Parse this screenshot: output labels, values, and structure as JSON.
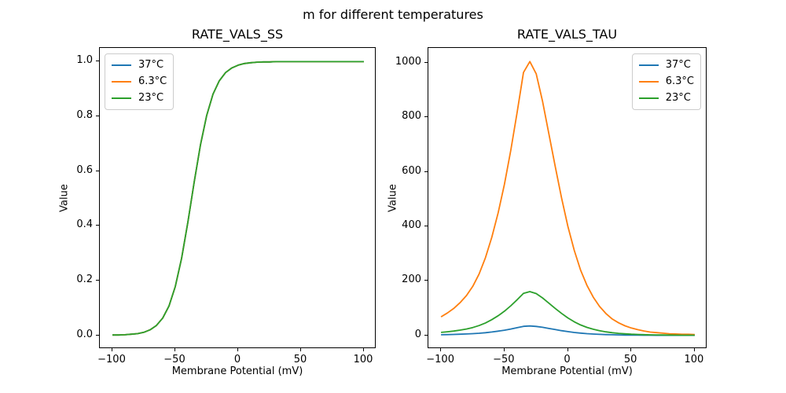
{
  "figure": {
    "title": "m for different temperatures",
    "background": "#ffffff"
  },
  "palette": {
    "blue": "#1f77b4",
    "orange": "#ff7f0e",
    "green": "#2ca02c",
    "axis": "#000000",
    "legend_border": "#cccccc"
  },
  "chart_data": [
    {
      "type": "line",
      "title": "RATE_VALS_SS",
      "xlabel": "Membrane Potential (mV)",
      "ylabel": "Value",
      "xlim": [
        -110,
        110
      ],
      "ylim": [
        -0.05,
        1.05
      ],
      "xticks": [
        -100,
        -50,
        0,
        50,
        100
      ],
      "xtick_labels": [
        "−100",
        "−50",
        "0",
        "50",
        "100"
      ],
      "yticks": [
        0,
        0.2,
        0.4,
        0.6,
        0.8,
        1.0
      ],
      "ytick_labels": [
        "0.0",
        "0.2",
        "0.4",
        "0.6",
        "0.8",
        "1.0"
      ],
      "grid": false,
      "legend_position": "upper-left",
      "x": [
        -100,
        -95,
        -90,
        -85,
        -80,
        -75,
        -70,
        -65,
        -60,
        -55,
        -50,
        -45,
        -40,
        -35,
        -30,
        -25,
        -20,
        -15,
        -10,
        -5,
        0,
        5,
        10,
        15,
        20,
        25,
        30,
        35,
        40,
        45,
        50,
        55,
        60,
        65,
        70,
        75,
        80,
        85,
        90,
        95,
        100
      ],
      "series": [
        {
          "name": "37°C",
          "color": "#1f77b4",
          "values": [
            0.001,
            0.001,
            0.002,
            0.004,
            0.006,
            0.011,
            0.02,
            0.036,
            0.063,
            0.107,
            0.178,
            0.281,
            0.413,
            0.559,
            0.695,
            0.804,
            0.881,
            0.93,
            0.96,
            0.977,
            0.987,
            0.993,
            0.996,
            0.998,
            0.999,
            0.999,
            1,
            1,
            1,
            1,
            1,
            1,
            1,
            1,
            1,
            1,
            1,
            1,
            1,
            1,
            1
          ]
        },
        {
          "name": "6.3°C",
          "color": "#ff7f0e",
          "values": [
            0.001,
            0.001,
            0.002,
            0.004,
            0.006,
            0.011,
            0.02,
            0.036,
            0.063,
            0.107,
            0.178,
            0.281,
            0.413,
            0.559,
            0.695,
            0.804,
            0.881,
            0.93,
            0.96,
            0.977,
            0.987,
            0.993,
            0.996,
            0.998,
            0.999,
            0.999,
            1,
            1,
            1,
            1,
            1,
            1,
            1,
            1,
            1,
            1,
            1,
            1,
            1,
            1,
            1
          ]
        },
        {
          "name": "23°C",
          "color": "#2ca02c",
          "values": [
            0.001,
            0.001,
            0.002,
            0.004,
            0.006,
            0.011,
            0.02,
            0.036,
            0.063,
            0.107,
            0.178,
            0.281,
            0.413,
            0.559,
            0.695,
            0.804,
            0.881,
            0.93,
            0.96,
            0.977,
            0.987,
            0.993,
            0.996,
            0.998,
            0.999,
            0.999,
            1,
            1,
            1,
            1,
            1,
            1,
            1,
            1,
            1,
            1,
            1,
            1,
            1,
            1,
            1
          ]
        }
      ]
    },
    {
      "type": "line",
      "title": "RATE_VALS_TAU",
      "xlabel": "Membrane Potential (mV)",
      "ylabel": "Value",
      "xlim": [
        -110,
        110
      ],
      "ylim": [
        -50,
        1055
      ],
      "xticks": [
        -100,
        -50,
        0,
        50,
        100
      ],
      "xtick_labels": [
        "−100",
        "−50",
        "0",
        "50",
        "100"
      ],
      "yticks": [
        0,
        200,
        400,
        600,
        800,
        1000
      ],
      "ytick_labels": [
        "0",
        "200",
        "400",
        "600",
        "800",
        "1000"
      ],
      "grid": false,
      "legend_position": "upper-right",
      "x": [
        -100,
        -95,
        -90,
        -85,
        -80,
        -75,
        -70,
        -65,
        -60,
        -55,
        -50,
        -45,
        -40,
        -35,
        -30,
        -25,
        -20,
        -15,
        -10,
        -5,
        0,
        5,
        10,
        15,
        20,
        25,
        30,
        35,
        40,
        45,
        50,
        55,
        60,
        65,
        70,
        75,
        80,
        85,
        90,
        95,
        100
      ],
      "series": [
        {
          "name": "37°C",
          "color": "#1f77b4",
          "values": [
            2.3,
            2.8,
            3.4,
            4.1,
            5,
            6.2,
            7.7,
            9.8,
            12.3,
            15.4,
            19,
            23.3,
            28.1,
            33,
            34.4,
            32.9,
            29.5,
            25.3,
            21.2,
            17.3,
            13.7,
            10.7,
            8.2,
            6.3,
            4.8,
            3.6,
            2.7,
            2.1,
            1.6,
            1.2,
            0.9,
            0.7,
            0.5,
            0.4,
            0.3,
            0.3,
            0.2,
            0.2,
            0.1,
            0.1,
            0.1
          ]
        },
        {
          "name": "6.3°C",
          "color": "#ff7f0e",
          "values": [
            68,
            82,
            99,
            120,
            146,
            180,
            225,
            285,
            360,
            450,
            555,
            680,
            820,
            965,
            1005,
            960,
            860,
            740,
            620,
            505,
            400,
            312,
            240,
            184,
            140,
            106,
            80,
            60,
            46,
            35,
            27,
            21,
            16,
            12,
            10,
            8,
            6,
            5,
            4,
            4,
            3
          ]
        },
        {
          "name": "23°C",
          "color": "#2ca02c",
          "values": [
            10.9,
            13.1,
            15.8,
            19.2,
            23.3,
            28.8,
            35.9,
            45.5,
            57.5,
            71.9,
            88.7,
            108.6,
            131,
            154.2,
            160.5,
            153.4,
            137.4,
            118.2,
            99,
            80.7,
            63.9,
            49.8,
            38.3,
            29.4,
            22.4,
            16.9,
            12.8,
            9.6,
            7.3,
            5.6,
            4.3,
            3.4,
            2.6,
            1.9,
            1.6,
            1.3,
            1,
            0.8,
            0.6,
            0.6,
            0.5
          ]
        }
      ]
    }
  ]
}
